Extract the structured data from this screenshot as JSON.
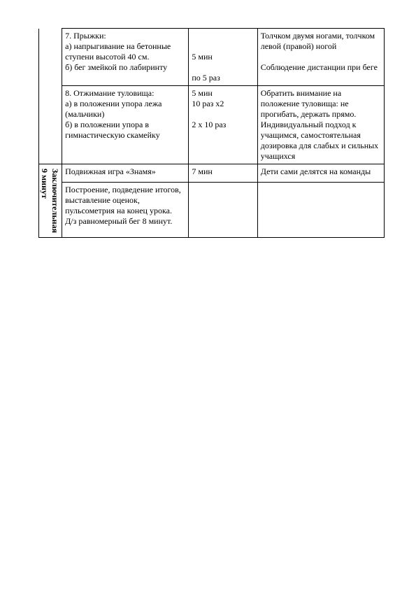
{
  "rows": {
    "r1": {
      "col2": "7. Прыжки:\nа) напрыгивание на бетонные ступени высотой 40 см.\nб) бег змейкой по лабиринту",
      "col3": "\n\n5 мин\n\nпо 5 раз",
      "col4": "Толчком двумя ногами, толчком левой (правой) ногой\n\nСоблюдение дистанции при беге"
    },
    "r2": {
      "col2": "8. Отжимание туловища:\nа) в положении упора лежа (мальчики)\nб) в положении упора в гимнастическую скамейку",
      "col3": "5 мин\n10 раз х2\n\n2 х 10 раз",
      "col4": "Обратить внимание на положение туловища: не прогибать, держать прямо.\nИндивидуальный подход к учащимся, самостоятельная дозировка для слабых и сильных учащихся"
    },
    "r3": {
      "col1": "Заключительная\n9 минут",
      "col2": "Подвижная игра «Знамя»",
      "col3": "7 мин",
      "col4": "Дети сами делятся на команды"
    },
    "r4": {
      "col2": "Построение, подведение итогов, выставление оценок, пульсометрия на конец урока.\nД/з равномерный бег 8 минут.",
      "col3": "",
      "col4": ""
    }
  }
}
